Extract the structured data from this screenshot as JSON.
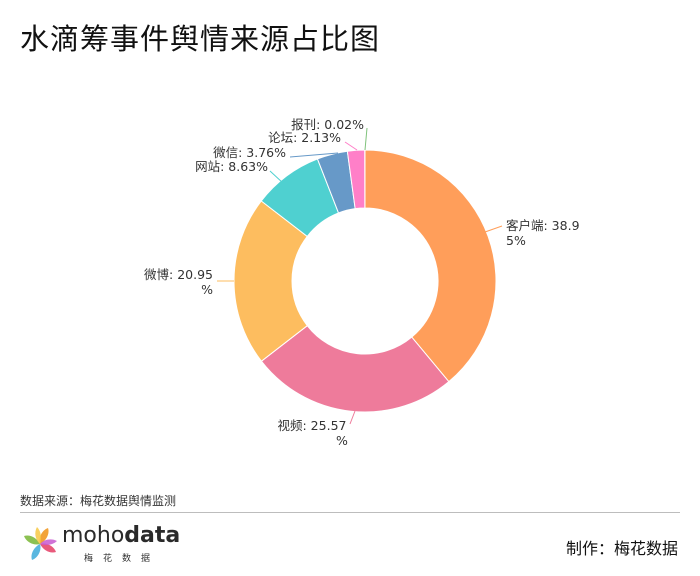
{
  "title": "水滴筹事件舆情来源占比图",
  "source": "数据来源：梅花数据舆情监测",
  "credit": "制作：梅花数据",
  "logo": {
    "text_light": "moho",
    "text_bold": "data",
    "sub": "梅花数据"
  },
  "chart_data": {
    "type": "pie",
    "donut": true,
    "title": "水滴筹事件舆情来源占比图",
    "slices": [
      {
        "label": "客户端",
        "value": 38.95,
        "color": "#ff9e5a",
        "display": [
          "客户端: 38.9",
          "5%"
        ]
      },
      {
        "label": "视频",
        "value": 25.57,
        "color": "#ee7b9b",
        "display": [
          "视频: 25.57",
          "%"
        ]
      },
      {
        "label": "微博",
        "value": 20.95,
        "color": "#fdbd5f",
        "display": [
          "微博: 20.95",
          "%"
        ]
      },
      {
        "label": "网站",
        "value": 8.63,
        "color": "#4fd0d0",
        "display": [
          "网站: 8.63%"
        ]
      },
      {
        "label": "微信",
        "value": 3.76,
        "color": "#6799c8",
        "display": [
          "微信: 3.76%"
        ]
      },
      {
        "label": "论坛",
        "value": 2.13,
        "color": "#ff7fc8",
        "display": [
          "论坛: 2.13%"
        ]
      },
      {
        "label": "报刊",
        "value": 0.02,
        "color": "#7ec27a",
        "display": [
          "报刊: 0.02%"
        ]
      }
    ]
  }
}
